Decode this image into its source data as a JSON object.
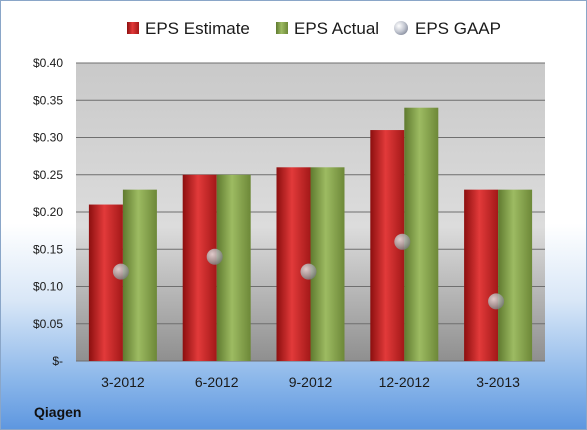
{
  "company": "Qiagen",
  "colors": {
    "estimate": "#d42a2a",
    "actual": "#8aa84f",
    "gaap": "#b7bbc6"
  },
  "chart_data": {
    "type": "bar",
    "categories": [
      "3-2012",
      "6-2012",
      "9-2012",
      "12-2012",
      "3-2013"
    ],
    "series": [
      {
        "name": "EPS Estimate",
        "values": [
          0.21,
          0.25,
          0.26,
          0.31,
          0.23
        ]
      },
      {
        "name": "EPS Actual",
        "values": [
          0.23,
          0.25,
          0.26,
          0.34,
          0.23
        ]
      },
      {
        "name": "EPS GAAP",
        "marker": "circle",
        "values": [
          0.12,
          0.14,
          0.12,
          0.16,
          0.08
        ]
      }
    ],
    "ylim": [
      0,
      0.4
    ],
    "yticks": [
      0,
      0.05,
      0.1,
      0.15,
      0.2,
      0.25,
      0.3,
      0.35,
      0.4
    ],
    "ytick_labels": [
      "$-",
      "$0.05",
      "$0.10",
      "$0.15",
      "$0.20",
      "$0.25",
      "$0.30",
      "$0.35",
      "$0.40"
    ],
    "legend_position": "top",
    "grid": true
  }
}
